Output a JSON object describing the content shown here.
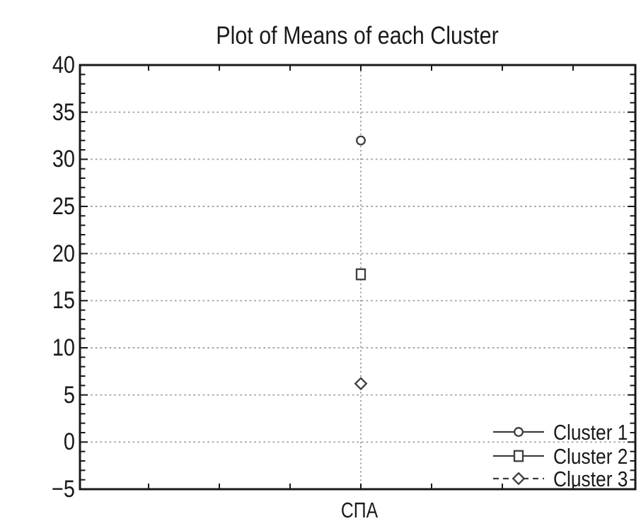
{
  "chart_data": {
    "type": "line",
    "title": "Plot of Means of each Cluster",
    "x_category": "СПА",
    "xlabel": "",
    "ylabel": "",
    "ylim": [
      -5,
      40
    ],
    "ytick_step": 5,
    "yticks": [
      40,
      35,
      30,
      25,
      20,
      15,
      10,
      5,
      0,
      -5
    ],
    "grid": "dashed horizontal at major ticks + dashed vertical at category",
    "legend_position": "bottom-right inside plot",
    "series": [
      {
        "name": "Cluster 1",
        "marker": "circle",
        "line": "solid",
        "value": 32
      },
      {
        "name": "Cluster 2",
        "marker": "square",
        "line": "solid",
        "value": 17.8
      },
      {
        "name": "Cluster 3",
        "marker": "diamond",
        "line": "dashed",
        "value": 6.2
      }
    ]
  },
  "colors": {
    "text": "#1a1a1a",
    "border": "#1a1a1a",
    "grid": "#a4a4a4",
    "marker": "#3d3d3d",
    "marker_fill": "#ffffff",
    "background": "#ffffff"
  }
}
